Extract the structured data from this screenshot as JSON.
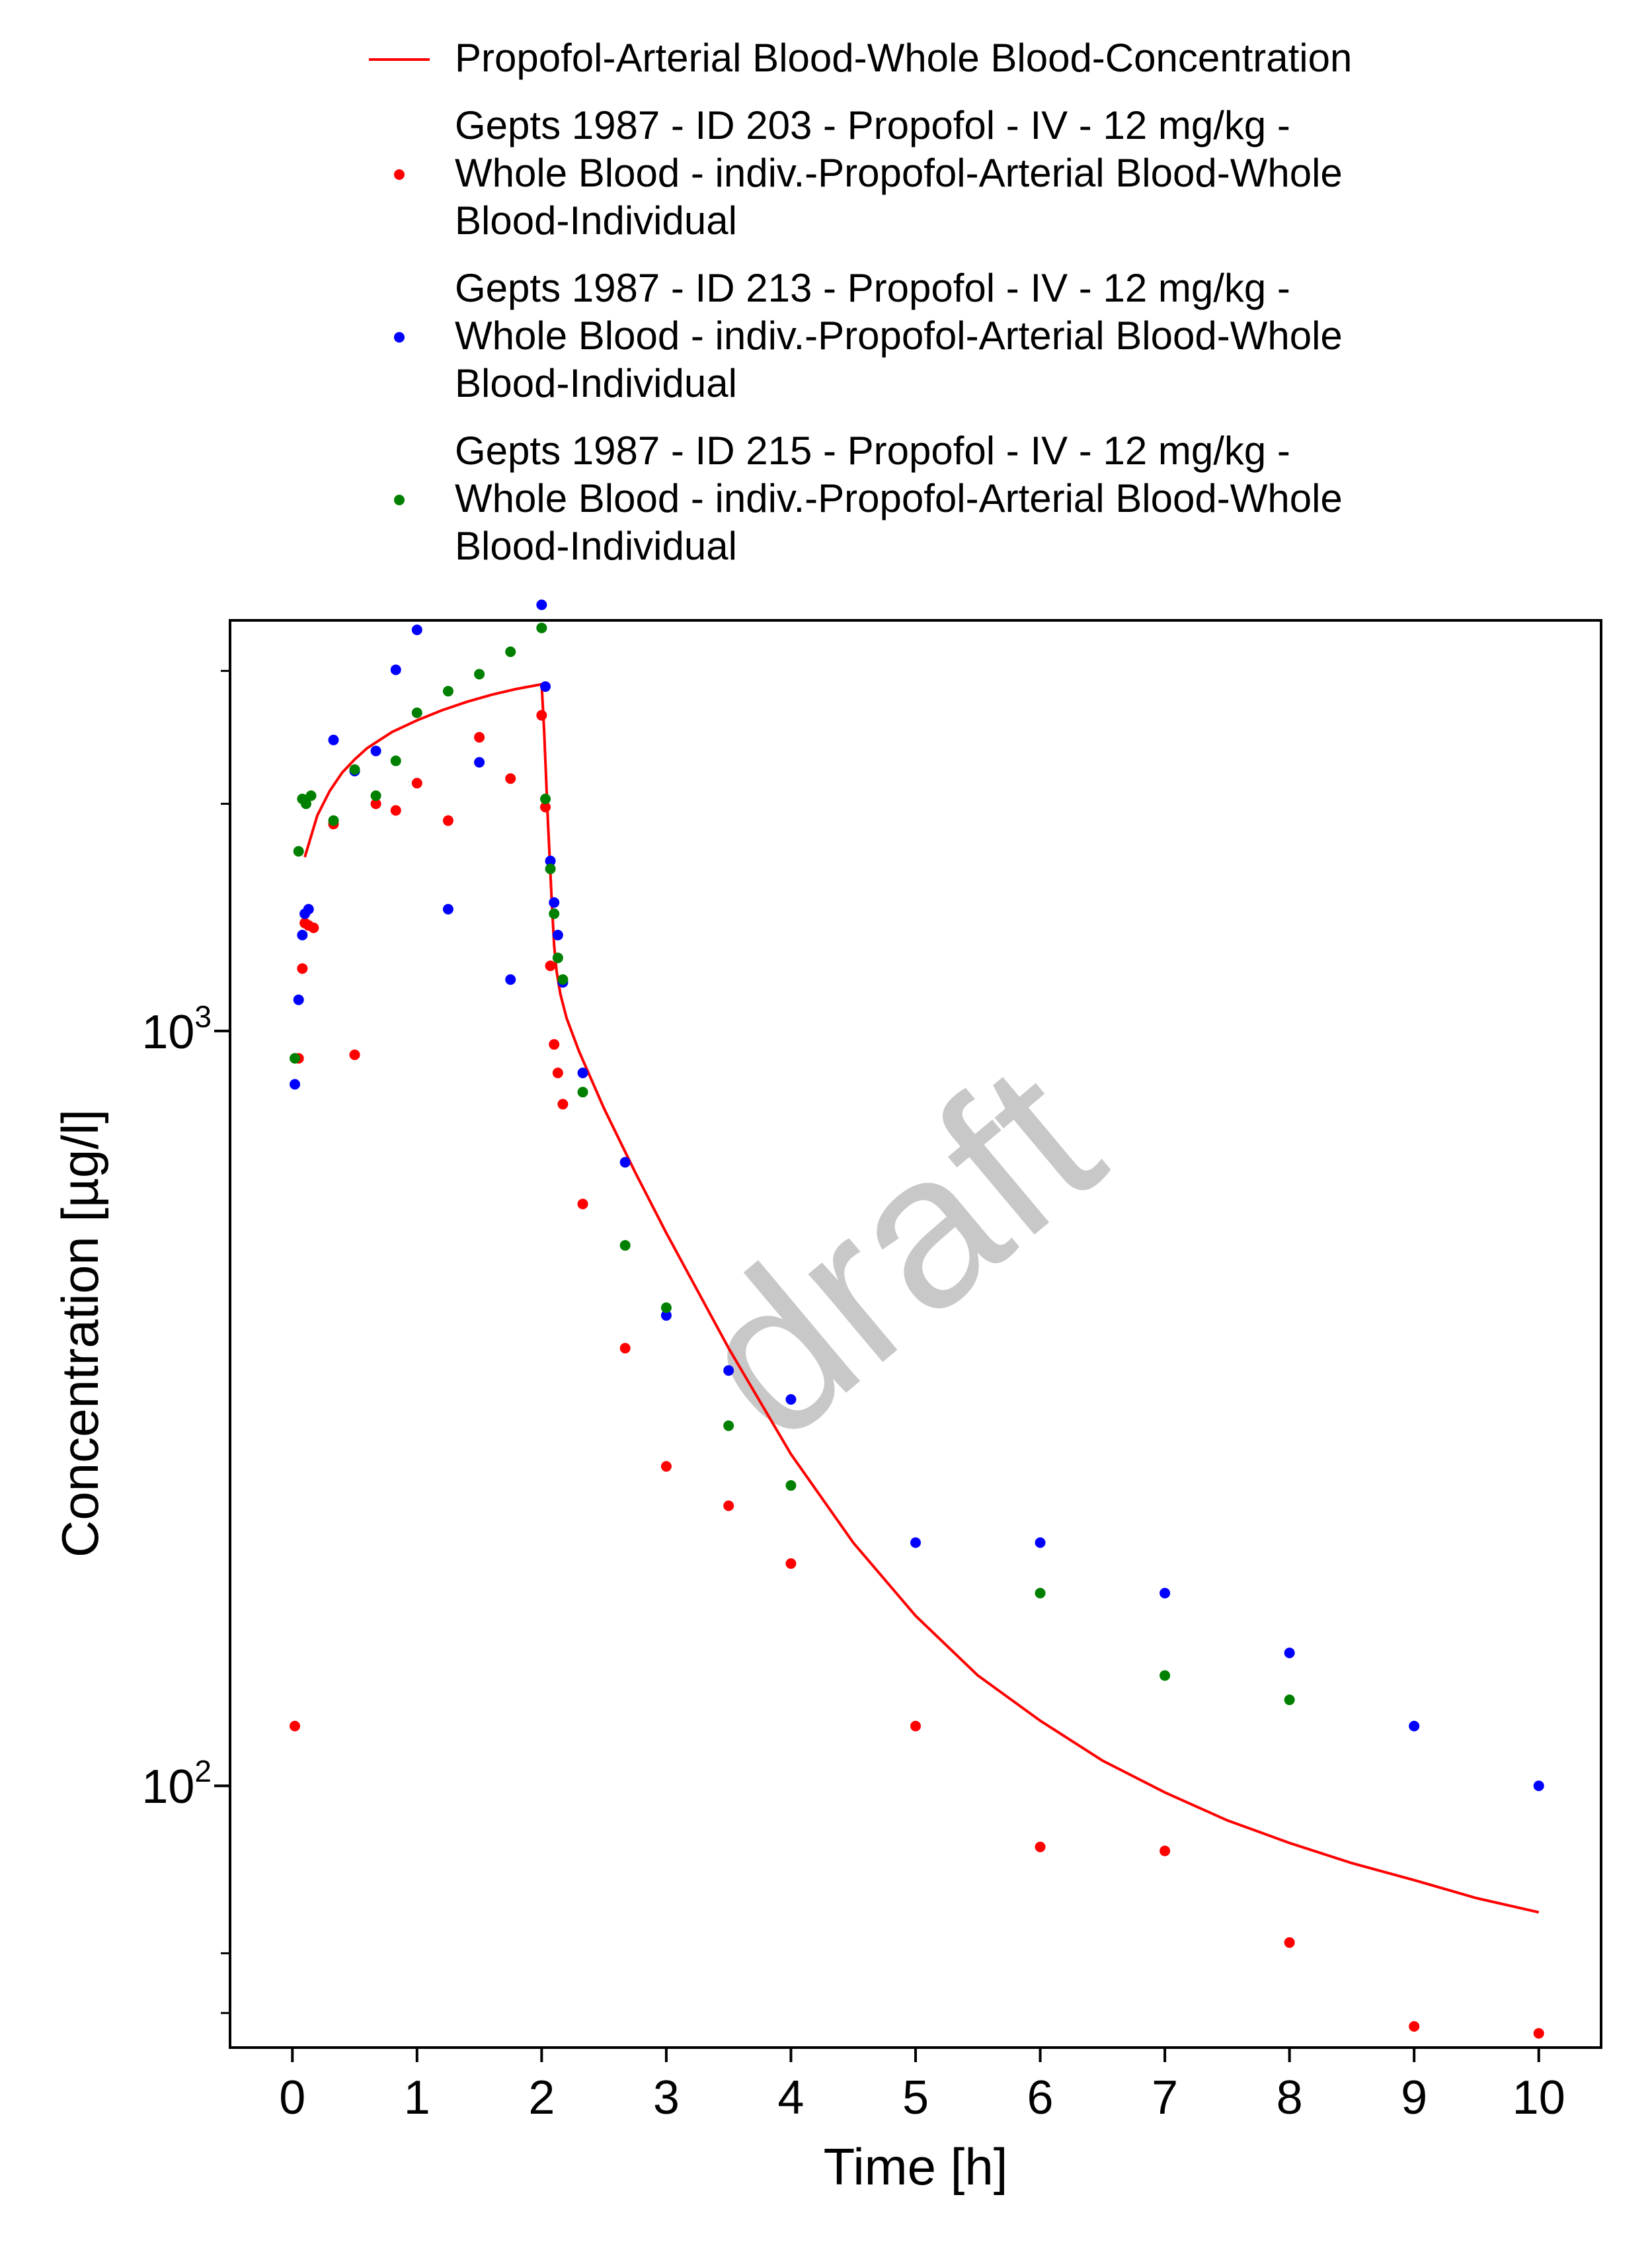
{
  "chart_data": {
    "type": "scatter",
    "title": "",
    "xlabel": "Time [h]",
    "ylabel": "Concentration [µg/l]",
    "xlim": [
      -0.5,
      10.5
    ],
    "ylim": [
      45,
      3500
    ],
    "yscale": "log",
    "x_ticks": [
      0,
      1,
      2,
      3,
      4,
      5,
      6,
      7,
      8,
      9,
      10
    ],
    "x_tick_labels": [
      "0",
      "1",
      "2",
      "3",
      "4",
      "5",
      "6",
      "7",
      "8",
      "9",
      "10"
    ],
    "y_major_ticks": [
      {
        "value": 100,
        "base": "10",
        "exp": "2"
      },
      {
        "value": 1000,
        "base": "10",
        "exp": "3"
      }
    ],
    "y_minor_ticks": [
      50,
      60,
      2000,
      3000
    ],
    "legend_position": "top",
    "watermark": "draft",
    "series": [
      {
        "name": "Propofol-Arterial Blood-Whole Blood-Concentration",
        "legend_lines": [
          "Propofol-Arterial Blood-Whole Blood-Concentration"
        ],
        "kind": "line",
        "color": "#ff0000",
        "x": [
          0.1,
          0.2,
          0.3,
          0.4,
          0.5,
          0.6,
          0.8,
          1.0,
          1.2,
          1.4,
          1.6,
          1.8,
          2.0,
          2.02,
          2.05,
          2.08,
          2.1,
          2.12,
          2.15,
          2.2,
          2.3,
          2.5,
          2.75,
          3.0,
          3.5,
          4.0,
          4.5,
          5.0,
          5.5,
          6.0,
          6.5,
          7.0,
          7.5,
          8.0,
          8.5,
          9.0,
          9.5,
          10.0
        ],
        "y": [
          1700,
          1930,
          2080,
          2200,
          2290,
          2370,
          2490,
          2580,
          2660,
          2730,
          2790,
          2840,
          2880,
          2500,
          1900,
          1500,
          1300,
          1200,
          1120,
          1040,
          940,
          790,
          650,
          540,
          380,
          275,
          210,
          168,
          140,
          122,
          108,
          98,
          90,
          84,
          79,
          75,
          71,
          68
        ]
      },
      {
        "name": "Gepts 1987 - ID 203 - Propofol - IV - 12 mg/kg - Whole Blood - indiv.-Propofol-Arterial Blood-Whole Blood-Individual",
        "legend_lines": [
          "Gepts 1987 - ID 203 - Propofol - IV - 12 mg/kg -",
          "Whole Blood - indiv.-Propofol-Arterial Blood-Whole",
          "Blood-Individual"
        ],
        "kind": "scatter",
        "color": "#ff0000",
        "x": [
          0.02,
          0.05,
          0.08,
          0.1,
          0.13,
          0.17,
          0.33,
          0.5,
          0.67,
          0.83,
          1.0,
          1.25,
          1.5,
          1.75,
          2.0,
          2.03,
          2.07,
          2.1,
          2.13,
          2.17,
          2.33,
          2.67,
          3.0,
          3.5,
          4.0,
          5.0,
          6.0,
          7.0,
          8.0,
          9.0,
          10.0
        ],
        "y": [
          120,
          920,
          1210,
          1390,
          1380,
          1370,
          1880,
          930,
          2000,
          1960,
          2130,
          1900,
          2450,
          2160,
          2620,
          1980,
          1220,
          960,
          880,
          800,
          590,
          380,
          265,
          235,
          197,
          120,
          83,
          82,
          62,
          48,
          47
        ]
      },
      {
        "name": "Gepts 1987 - ID 213 - Propofol - IV - 12 mg/kg - Whole Blood - indiv.-Propofol-Arterial Blood-Whole Blood-Individual",
        "legend_lines": [
          "Gepts 1987 - ID 213 - Propofol - IV - 12 mg/kg -",
          "Whole Blood - indiv.-Propofol-Arterial Blood-Whole",
          "Blood-Individual"
        ],
        "kind": "scatter",
        "color": "#0000ff",
        "x": [
          0.02,
          0.05,
          0.08,
          0.1,
          0.13,
          0.33,
          0.5,
          0.67,
          0.83,
          1.0,
          1.25,
          1.5,
          1.75,
          2.0,
          2.03,
          2.07,
          2.1,
          2.13,
          2.17,
          2.33,
          2.67,
          3.0,
          3.5,
          4.0,
          5.0,
          6.0,
          7.0,
          8.0,
          9.0,
          10.0
        ],
        "y": [
          850,
          1100,
          1340,
          1430,
          1450,
          2430,
          2210,
          2350,
          3010,
          3400,
          1450,
          2270,
          1170,
          3670,
          2860,
          1680,
          1480,
          1340,
          1160,
          880,
          670,
          420,
          355,
          325,
          210,
          210,
          180,
          150,
          120,
          100
        ]
      },
      {
        "name": "Gepts 1987 - ID 215 - Propofol - IV - 12 mg/kg - Whole Blood - indiv.-Propofol-Arterial Blood-Whole Blood-Individual",
        "legend_lines": [
          "Gepts 1987 - ID 215 - Propofol - IV - 12 mg/kg -",
          "Whole Blood - indiv.-Propofol-Arterial Blood-Whole",
          "Blood-Individual"
        ],
        "kind": "scatter",
        "color": "#008000",
        "x": [
          0.02,
          0.05,
          0.08,
          0.11,
          0.15,
          0.33,
          0.5,
          0.67,
          0.83,
          1.0,
          1.25,
          1.5,
          1.75,
          2.0,
          2.03,
          2.07,
          2.1,
          2.13,
          2.17,
          2.33,
          2.67,
          3.0,
          3.5,
          4.0,
          6.0,
          7.0,
          8.0
        ],
        "y": [
          920,
          1730,
          2030,
          2000,
          2050,
          1900,
          2220,
          2050,
          2280,
          2640,
          2820,
          2970,
          3180,
          3420,
          2030,
          1640,
          1430,
          1250,
          1170,
          830,
          520,
          430,
          300,
          250,
          180,
          140,
          130
        ]
      }
    ]
  }
}
